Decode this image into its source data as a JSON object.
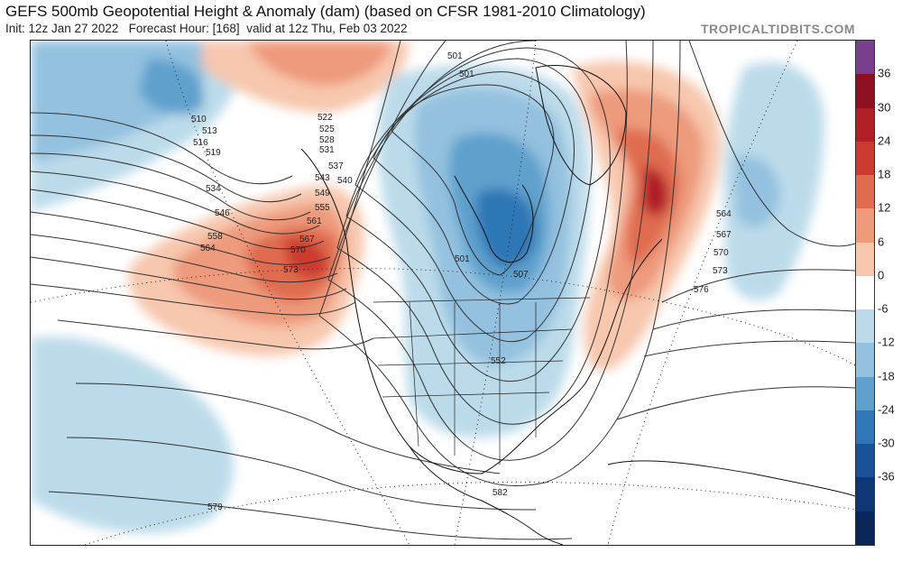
{
  "header": {
    "title": "GEFS 500mb Geopotential Height & Anomaly (dam) (based on CFSR 1981-2010 Climatology)",
    "init": "Init: 12z Jan 27 2022",
    "forecast": "Forecast Hour: [168]",
    "valid": "valid at 12z Thu, Feb 03 2022",
    "site": "TROPICALTIDBITS.COM"
  },
  "colorbar": {
    "ticks": [
      "36",
      "30",
      "24",
      "18",
      "12",
      "6",
      "0",
      "-6",
      "-12",
      "-18",
      "-24",
      "-30",
      "-36"
    ],
    "colors": [
      "#7a3e8e",
      "#8e0f1f",
      "#b01e26",
      "#cc3a2f",
      "#df6c4f",
      "#ee9a7b",
      "#f7c7ae",
      "#ffffff",
      "#bcdbea",
      "#93c1df",
      "#5fa0cd",
      "#2f77b6",
      "#19519a",
      "#0f3776",
      "#0a2558"
    ]
  },
  "map": {
    "contour_labels": [
      "501",
      "507",
      "510",
      "513",
      "516",
      "519",
      "522",
      "525",
      "528",
      "531",
      "534",
      "537",
      "540",
      "543",
      "546",
      "549",
      "552",
      "555",
      "558",
      "561",
      "564",
      "567",
      "570",
      "573",
      "576",
      "579",
      "582"
    ]
  }
}
